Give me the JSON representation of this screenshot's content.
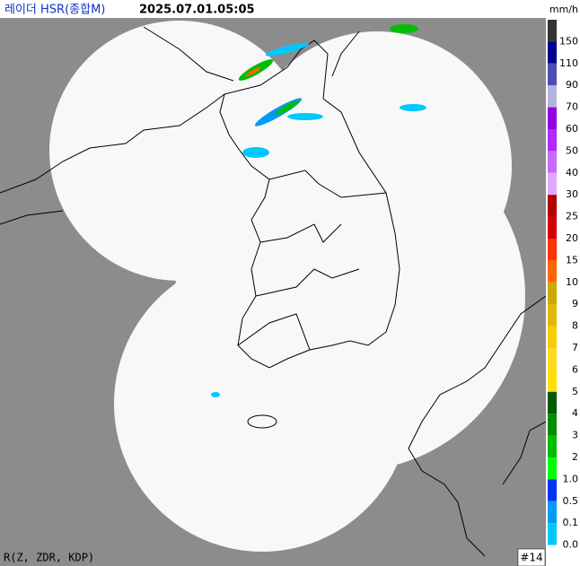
{
  "header": {
    "title": "레이더 HSR(종합M)",
    "timestamp": "2025.07.01.05:05",
    "unit": "mm/h"
  },
  "legend": {
    "items": [
      {
        "label": "150",
        "color": "#333333"
      },
      {
        "label": "110",
        "color": "#000390"
      },
      {
        "label": "90",
        "color": "#4c4eb1"
      },
      {
        "label": "70",
        "color": "#b3b4de"
      },
      {
        "label": "60",
        "color": "#9300e4"
      },
      {
        "label": "50",
        "color": "#b329ff"
      },
      {
        "label": "40",
        "color": "#c969ff"
      },
      {
        "label": "30",
        "color": "#e0a9ff"
      },
      {
        "label": "25",
        "color": "#b40000"
      },
      {
        "label": "20",
        "color": "#d20000"
      },
      {
        "label": "15",
        "color": "#ff3200"
      },
      {
        "label": "10",
        "color": "#ff6600"
      },
      {
        "label": "9",
        "color": "#ccaa00"
      },
      {
        "label": "8",
        "color": "#e0b900"
      },
      {
        "label": "7",
        "color": "#f9cd00"
      },
      {
        "label": "6",
        "color": "#ffdc1f"
      },
      {
        "label": "5",
        "color": "#ffe100"
      },
      {
        "label": "4",
        "color": "#005a00"
      },
      {
        "label": "3",
        "color": "#008c00"
      },
      {
        "label": "2",
        "color": "#00be00"
      },
      {
        "label": "1.0",
        "color": "#00ff00"
      },
      {
        "label": "0.5",
        "color": "#0033f5"
      },
      {
        "label": "0.1",
        "color": "#009bf5"
      },
      {
        "label": "0.0",
        "color": "#00c8ff"
      }
    ]
  },
  "footer": {
    "method": "R(Z, ZDR, KDP)",
    "frame": "#14"
  }
}
